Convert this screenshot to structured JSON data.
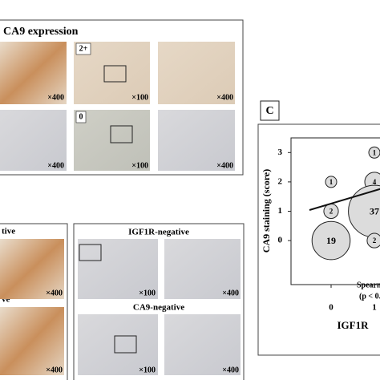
{
  "panel_a": {
    "title": "CA9 expression",
    "grade_labels": [
      "2+",
      "0"
    ],
    "magnifications": [
      "×400",
      "×100",
      "×400",
      "×400",
      "×100",
      "×400"
    ]
  },
  "panel_b": {
    "left_labels": [
      "tive",
      "ve"
    ],
    "right_labels": [
      "IGF1R-negative",
      "CA9-negative"
    ],
    "magnifications": [
      "×400",
      "×400",
      "×100",
      "×400",
      "×100",
      "×400"
    ]
  },
  "panel_c": {
    "letter": "C"
  },
  "chart_data": {
    "type": "bubble",
    "ylabel": "CA9 staining (score)",
    "xlabel": "IGF1R",
    "annotations": [
      "Spearm",
      "(p < 0.0"
    ],
    "x": [
      0,
      0,
      0,
      1,
      1,
      1,
      1
    ],
    "y": [
      2,
      1,
      0,
      3,
      2,
      1,
      0
    ],
    "sizes": [
      1,
      2,
      19,
      1,
      4,
      37,
      2
    ],
    "color": "#dcdcdc",
    "xlim": [
      -1,
      2
    ],
    "ylim": [
      -1.5,
      3.5
    ],
    "xticks": [
      0,
      1
    ],
    "yticks": [
      0,
      1,
      2,
      3
    ]
  }
}
